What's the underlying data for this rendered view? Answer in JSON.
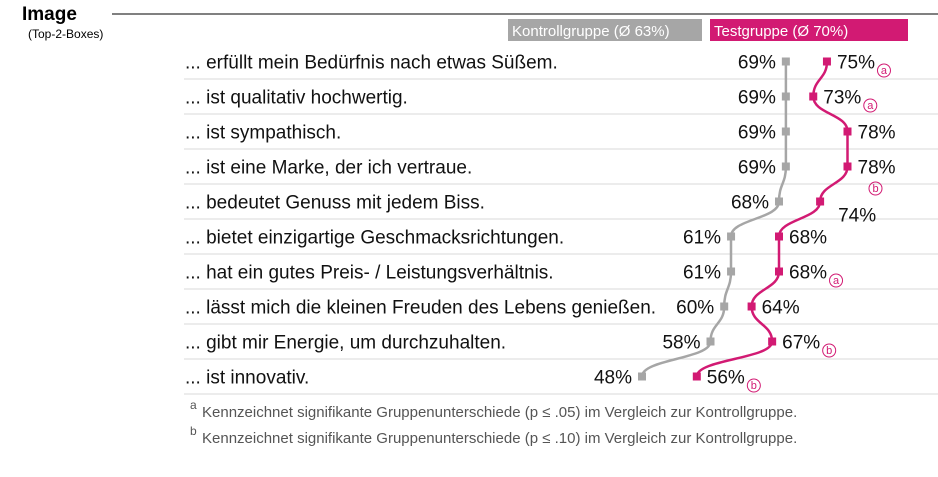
{
  "chart_data": {
    "type": "line",
    "title": "Image",
    "subtitle": "(Top-2-Boxes)",
    "unit": "%",
    "categories": [
      "... erfüllt mein Bedürfnis nach etwas Süßem.",
      "... ist qualitativ hochwertig.",
      "... ist sympathisch.",
      "... ist eine Marke, der ich vertraue.",
      "... bedeutet Genuss mit jedem Biss.",
      "... bietet einzigartige Geschmacksrichtungen.",
      "... hat ein gutes Preis- / Leistungsverhältnis.",
      "... lässt mich die kleinen Freuden des Lebens genießen.",
      "... gibt mir Energie, um durchzuhalten.",
      "... ist innovativ."
    ],
    "series": [
      {
        "name": "Kontrollgruppe (Ø 63%)",
        "color": "#a6a6a6",
        "values": [
          69,
          69,
          69,
          69,
          68,
          61,
          61,
          60,
          58,
          48
        ]
      },
      {
        "name": "Testgruppe (Ø 70%)",
        "color": "#d21a73",
        "values": [
          75,
          73,
          78,
          78,
          74,
          68,
          68,
          64,
          67,
          56
        ],
        "significance": [
          "a",
          "a",
          "",
          "b",
          "",
          "",
          "a",
          "",
          "b",
          "b"
        ]
      }
    ],
    "footnotes": [
      {
        "marker": "a",
        "text": "Kennzeichnet signifikante Gruppenunterschiede (p ≤ .05) im Vergleich zur Kontrollgruppe."
      },
      {
        "marker": "b",
        "text": "Kennzeichnet signifikante Gruppenunterschiede (p ≤ .10) im Vergleich zur Kontrollgruppe."
      }
    ]
  }
}
